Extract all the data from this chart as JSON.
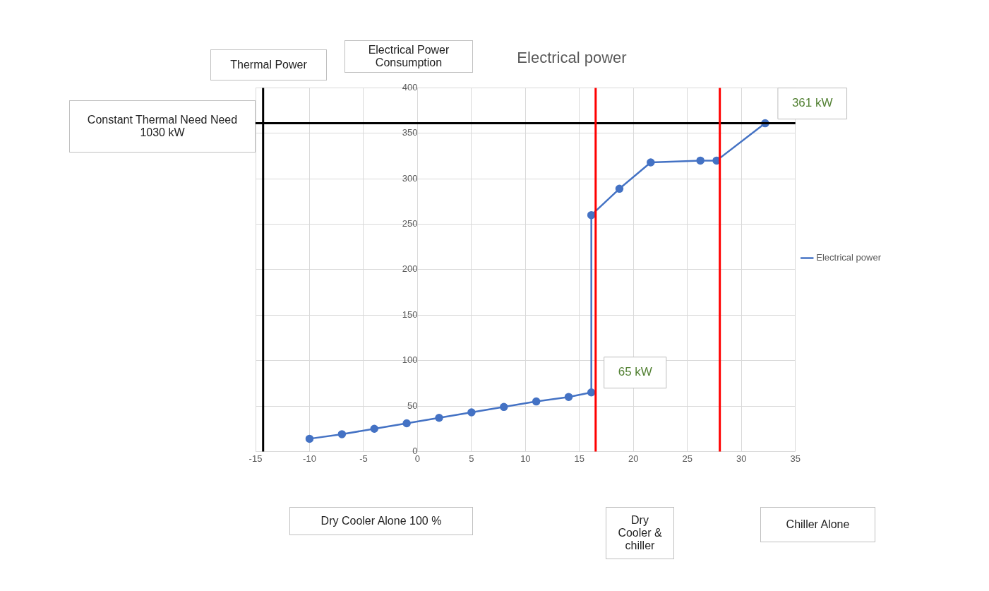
{
  "chart_data": {
    "type": "line",
    "title": "Electrical power",
    "x": [
      -10,
      -7,
      -4,
      -1,
      2,
      5,
      8,
      11,
      14,
      16.1,
      16.1,
      18.7,
      21.6,
      26.2,
      27.7,
      32.2
    ],
    "series": [
      {
        "name": "Electrical power",
        "color": "#4472c4",
        "values": [
          14,
          19,
          25,
          31,
          37,
          43,
          49,
          55,
          60,
          65,
          260,
          289,
          318,
          320,
          320,
          361
        ]
      }
    ],
    "xlim": [
      -15,
      35
    ],
    "xticks": [
      -15,
      -10,
      -5,
      0,
      5,
      10,
      15,
      20,
      25,
      30,
      35
    ],
    "ylim": [
      0,
      400
    ],
    "yticks": [
      0,
      50,
      100,
      150,
      200,
      250,
      300,
      350,
      400
    ],
    "grid": true,
    "legend": "right",
    "marker": "circle",
    "line_style": "solid",
    "ref_lines": [
      {
        "axis": "x",
        "value": -14.3,
        "color": "#000000"
      },
      {
        "axis": "y",
        "value": 361,
        "color": "#000000"
      },
      {
        "axis": "x",
        "value": 16.5,
        "color": "#ff0000"
      },
      {
        "axis": "x",
        "value": 28,
        "color": "#ff0000"
      }
    ],
    "annotations": [
      "Thermal Power",
      "Electrical Power Consumption",
      "Constant  Thermal Need Need 1030 kW",
      "Dry Cooler Alone 100 %",
      "Dry Cooler & chiller",
      "Chiller Alone",
      {
        "text": "65 kW",
        "x": 16.1,
        "y": 65
      },
      {
        "text": "361 kW",
        "x": 32.2,
        "y": 361
      }
    ]
  }
}
